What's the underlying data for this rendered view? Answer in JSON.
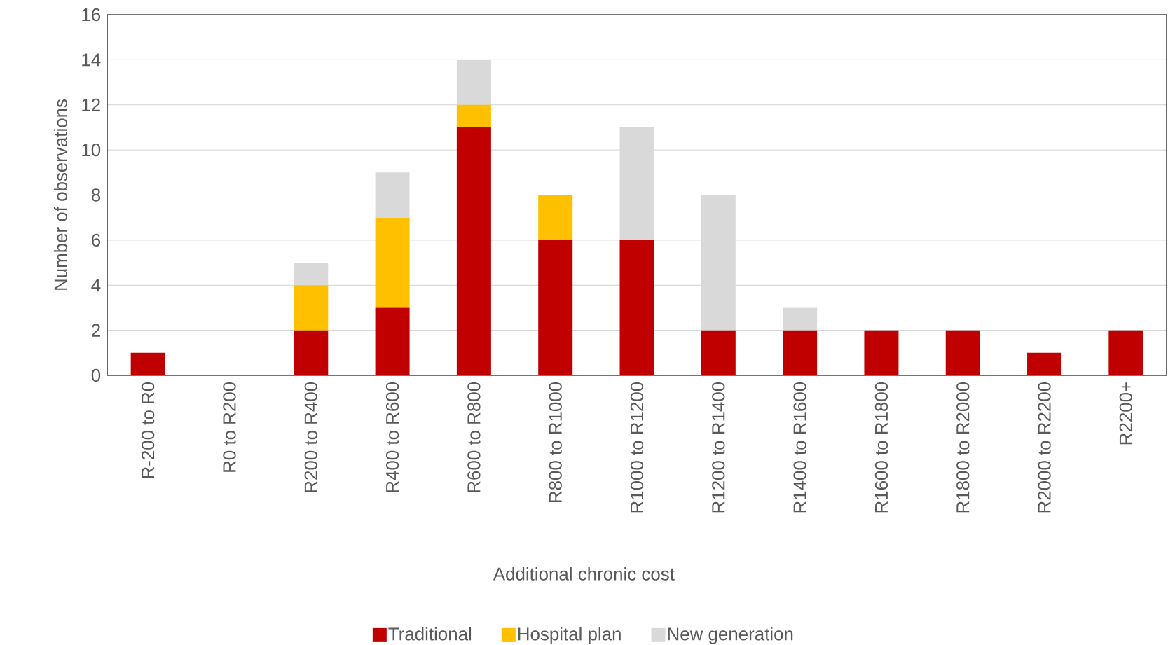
{
  "chart_data": {
    "type": "bar",
    "stacked": true,
    "xlabel": "Additional chronic cost",
    "ylabel": "Number of observations",
    "categories": [
      "R-200 to R0",
      "R0 to R200",
      "R200 to R400",
      "R400 to R600",
      "R600 to R800",
      "R800 to R1000",
      "R1000 to R1200",
      "R1200 to R1400",
      "R1400 to R1600",
      "R1600 to R1800",
      "R1800 to R2000",
      "R2000 to R2200",
      "R2200+"
    ],
    "series": [
      {
        "name": "Traditional",
        "color": "#c00000",
        "values": [
          1,
          0,
          2,
          3,
          11,
          6,
          6,
          2,
          2,
          2,
          2,
          1,
          2
        ]
      },
      {
        "name": "Hospital plan",
        "color": "#ffc000",
        "values": [
          0,
          0,
          2,
          4,
          1,
          2,
          0,
          0,
          0,
          0,
          0,
          0,
          0
        ]
      },
      {
        "name": "New generation",
        "color": "#d9d9d9",
        "values": [
          0,
          0,
          1,
          2,
          2,
          0,
          5,
          6,
          1,
          0,
          0,
          0,
          0
        ]
      }
    ],
    "ylim": [
      0,
      16
    ],
    "yticks": [
      0,
      2,
      4,
      6,
      8,
      10,
      12,
      14,
      16
    ],
    "grid": "y",
    "legend": "bottom"
  }
}
